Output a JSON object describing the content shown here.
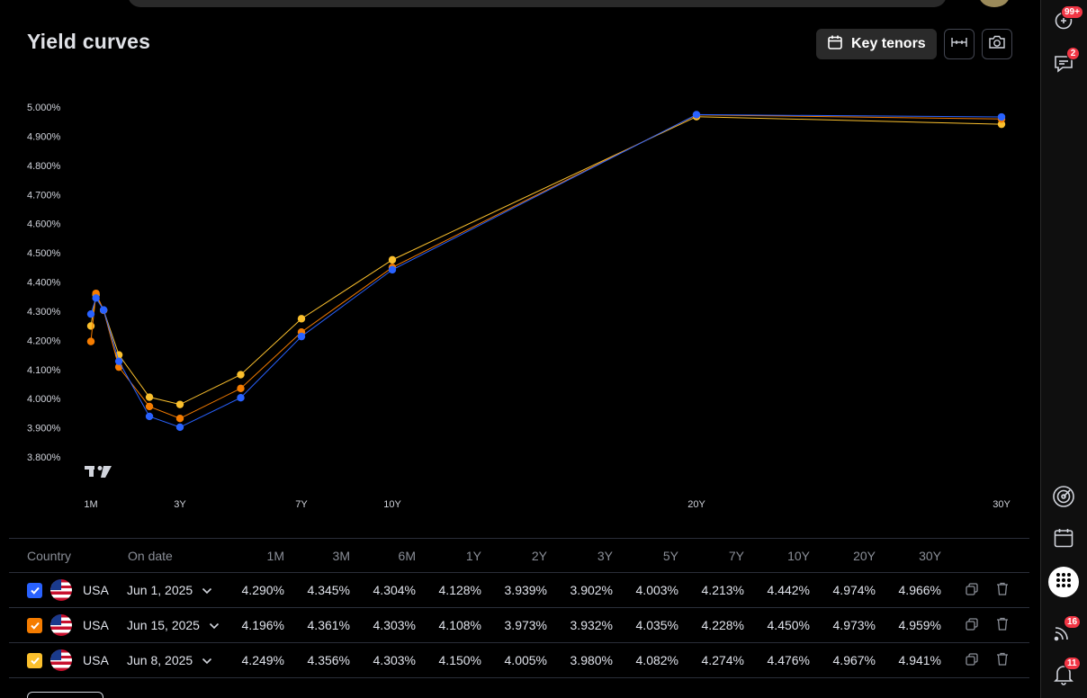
{
  "header": {
    "title": "Yield curves",
    "key_tenors_label": "Key tenors"
  },
  "sidebar": {
    "items": [
      {
        "icon": "ideas-icon",
        "badge": "99+"
      },
      {
        "icon": "chat-icon",
        "badge": "2"
      },
      {
        "icon": "target-icon",
        "badge": ""
      },
      {
        "icon": "calendar-icon",
        "badge": ""
      },
      {
        "icon": "apps-grid-icon",
        "badge": ""
      },
      {
        "icon": "news-feed-icon",
        "badge": "16"
      },
      {
        "icon": "notification-bell-icon",
        "badge": "11"
      }
    ]
  },
  "chart_data": {
    "type": "line",
    "x_tick_labels": [
      "1M",
      "3Y",
      "7Y",
      "10Y",
      "20Y",
      "30Y"
    ],
    "y_tick_labels": [
      "5.000%",
      "4.900%",
      "4.800%",
      "4.700%",
      "4.600%",
      "4.500%",
      "4.400%",
      "4.300%",
      "4.200%",
      "4.100%",
      "4.000%",
      "3.900%",
      "3.800%"
    ],
    "ylim": [
      3.8,
      5.0
    ],
    "categories": [
      "1M",
      "3M",
      "6M",
      "1Y",
      "2Y",
      "3Y",
      "5Y",
      "7Y",
      "10Y",
      "20Y",
      "30Y"
    ],
    "x_years": [
      0.0833,
      0.25,
      0.5,
      1,
      2,
      3,
      5,
      7,
      10,
      20,
      30
    ],
    "series": [
      {
        "color": "#2962ff",
        "values": [
          4.29,
          4.345,
          4.304,
          4.128,
          3.939,
          3.902,
          4.003,
          4.213,
          4.442,
          4.974,
          4.966
        ]
      },
      {
        "color": "#f57c00",
        "values": [
          4.196,
          4.361,
          4.303,
          4.108,
          3.973,
          3.932,
          4.035,
          4.228,
          4.45,
          4.973,
          4.959
        ]
      },
      {
        "color": "#fbc02d",
        "values": [
          4.249,
          4.356,
          4.303,
          4.15,
          4.005,
          3.98,
          4.082,
          4.274,
          4.476,
          4.967,
          4.941
        ]
      }
    ]
  },
  "table": {
    "headers": {
      "country": "Country",
      "date": "On date",
      "tenors": [
        "1M",
        "3M",
        "6M",
        "1Y",
        "2Y",
        "3Y",
        "5Y",
        "7Y",
        "10Y",
        "20Y",
        "30Y"
      ]
    },
    "rows": [
      {
        "checkbox_color": "#2962ff",
        "country": "USA",
        "date": "Jun 1, 2025",
        "values": [
          "4.290%",
          "4.345%",
          "4.304%",
          "4.128%",
          "3.939%",
          "3.902%",
          "4.003%",
          "4.213%",
          "4.442%",
          "4.974%",
          "4.966%"
        ]
      },
      {
        "checkbox_color": "#f57c00",
        "country": "USA",
        "date": "Jun 15, 2025",
        "values": [
          "4.196%",
          "4.361%",
          "4.303%",
          "4.108%",
          "3.973%",
          "3.932%",
          "4.035%",
          "4.228%",
          "4.450%",
          "4.973%",
          "4.959%"
        ]
      },
      {
        "checkbox_color": "#fbc02d",
        "country": "USA",
        "date": "Jun 8, 2025",
        "values": [
          "4.249%",
          "4.356%",
          "4.303%",
          "4.150%",
          "4.005%",
          "3.980%",
          "4.082%",
          "4.274%",
          "4.476%",
          "4.967%",
          "4.941%"
        ]
      }
    ]
  }
}
